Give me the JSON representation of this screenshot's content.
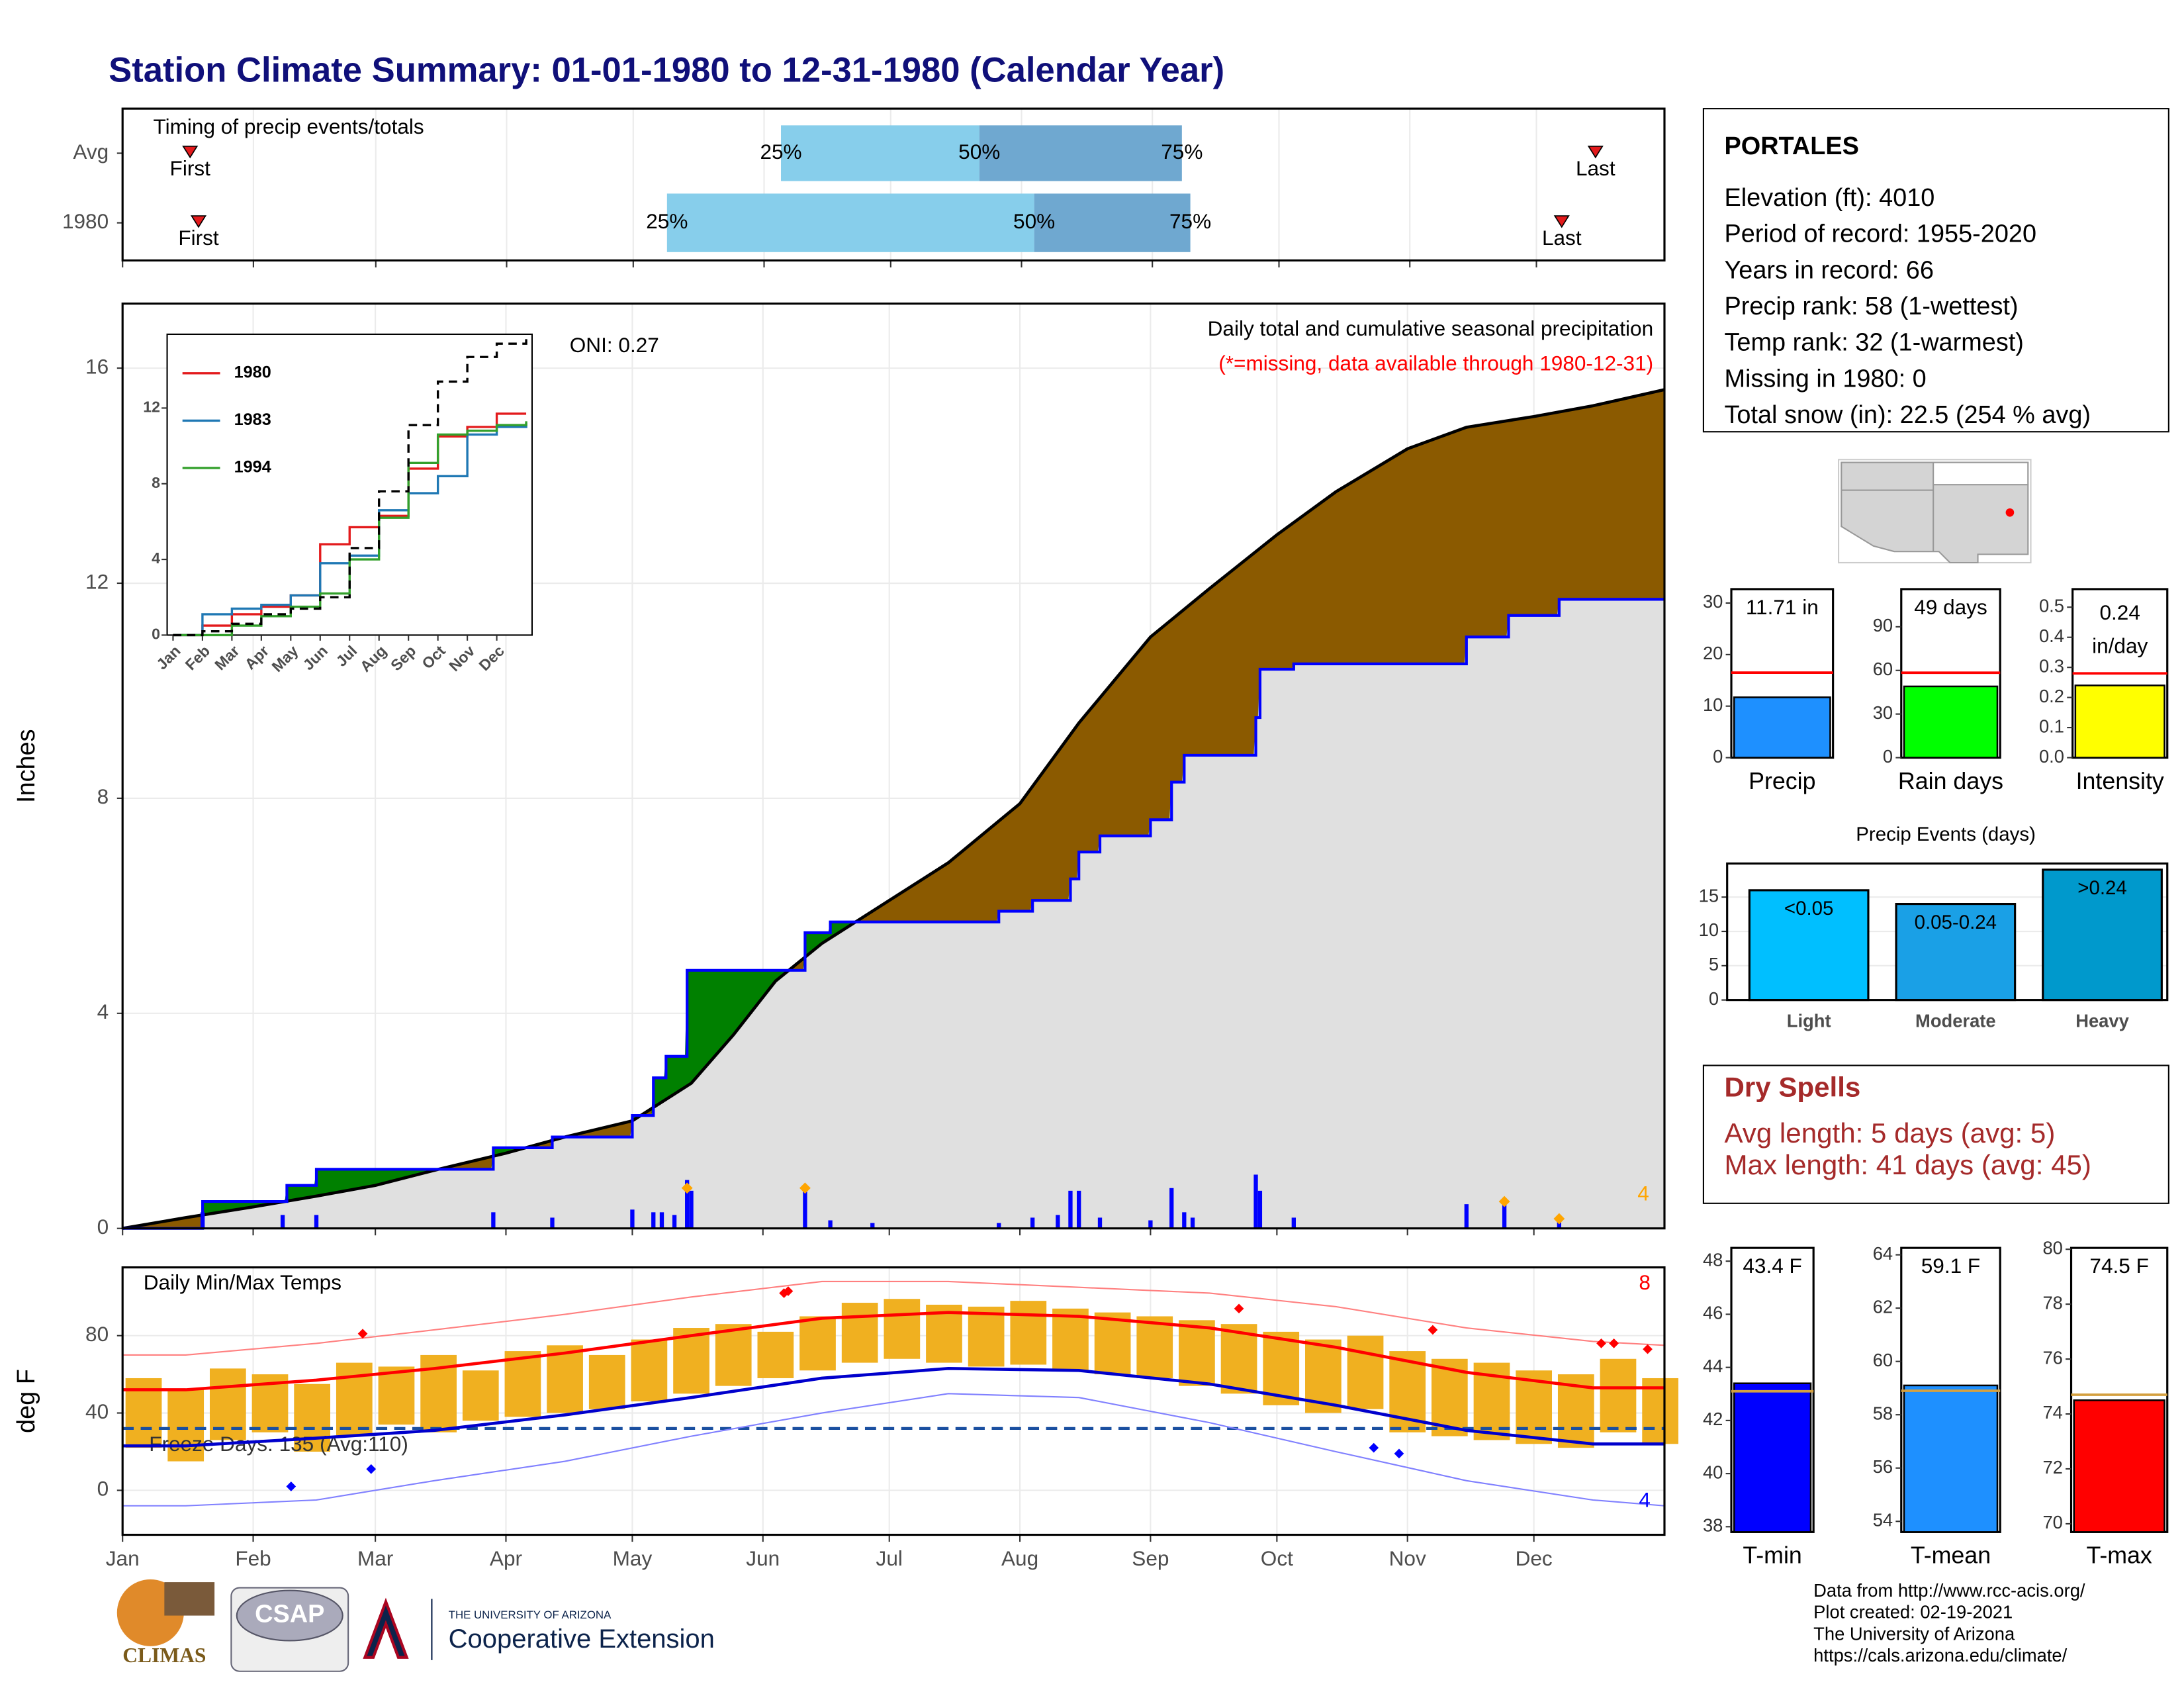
{
  "title": "Station Climate Summary: 01-01-1980 to 12-31-1980 (Calendar Year)",
  "chart_data": [
    {
      "type": "timing",
      "title": "Timing of precip events/totals",
      "categories": [
        "Avg",
        "1980"
      ],
      "xlim": [
        0,
        366
      ],
      "rows": [
        {
          "first": 16,
          "p25": 156,
          "p50": 203,
          "p75": 251,
          "last": 349
        },
        {
          "first": 18,
          "p25": 129,
          "p50": 216,
          "p75": 253,
          "last": 341
        }
      ],
      "labels": {
        "first": "First",
        "p25": "25%",
        "p50": "50%",
        "p75": "75%",
        "last": "Last"
      },
      "colors": [
        "#87ceeb",
        "#6fa8d0"
      ],
      "marker_color": "#e31a1c"
    },
    {
      "type": "cumulative",
      "title": "Daily total and cumulative seasonal precipitation",
      "subtitle": "(*=missing, data available through 1980-12-31)",
      "annotation": "ONI: 0.27",
      "ylabel": "Inches",
      "xlim": [
        0,
        366
      ],
      "ylim": [
        0,
        17.2
      ],
      "yticks": [
        0,
        4,
        8,
        12,
        16
      ],
      "grid": true,
      "series": [
        {
          "color": "#000000",
          "x": [
            0,
            15,
            31,
            46,
            60,
            75,
            91,
            105,
            121,
            135,
            145,
            155,
            166,
            182,
            196,
            213,
            227,
            244,
            258,
            274,
            288,
            305,
            319,
            335,
            349,
            366
          ],
          "values": [
            0,
            0.2,
            0.4,
            0.6,
            0.8,
            1.1,
            1.4,
            1.7,
            2.0,
            2.7,
            3.6,
            4.6,
            5.3,
            6.1,
            6.8,
            7.9,
            9.4,
            11.0,
            11.9,
            12.9,
            13.7,
            14.5,
            14.9,
            15.1,
            15.3,
            15.6
          ]
        },
        {
          "color": "#0000ff",
          "step": true,
          "x": [
            0,
            19,
            39,
            46,
            88,
            102,
            121,
            126,
            129,
            134,
            162,
            168,
            208,
            216,
            225,
            227,
            232,
            244,
            249,
            252,
            269,
            270,
            278,
            319,
            329,
            341,
            366
          ],
          "values": [
            0,
            0.5,
            0.8,
            1.1,
            1.5,
            1.7,
            2.1,
            2.8,
            3.2,
            4.8,
            5.5,
            5.7,
            5.9,
            6.1,
            6.5,
            7.0,
            7.3,
            7.6,
            8.3,
            8.8,
            9.5,
            10.4,
            10.5,
            11.0,
            11.4,
            11.7,
            11.7
          ]
        }
      ],
      "fill_colors": {
        "above": "#8b5a00",
        "below": "#008000",
        "base": "#e0e0e0"
      },
      "daily": {
        "color": "#0000ff",
        "x": [
          19,
          38,
          46,
          88,
          102,
          121,
          126,
          128,
          131,
          134,
          135,
          162,
          168,
          178,
          208,
          216,
          222,
          225,
          227,
          232,
          244,
          249,
          252,
          254,
          269,
          270,
          278,
          319,
          328,
          341
        ],
        "values": [
          0.3,
          0.25,
          0.25,
          0.3,
          0.2,
          0.35,
          0.3,
          0.3,
          0.25,
          0.9,
          0.7,
          0.8,
          0.15,
          0.1,
          0.1,
          0.2,
          0.25,
          0.7,
          0.7,
          0.2,
          0.15,
          0.75,
          0.3,
          0.2,
          1.0,
          0.7,
          0.2,
          0.45,
          0.45,
          0.15
        ]
      },
      "extremes": {
        "color": "#ffa500",
        "count": 4,
        "x": [
          134,
          162,
          328,
          341
        ],
        "values": [
          0.75,
          0.75,
          0.5,
          0.18
        ]
      }
    },
    {
      "type": "line",
      "xlim": [
        -0.2,
        12.2
      ],
      "ylim": [
        0,
        15.9
      ],
      "yticks": [
        0,
        4,
        8,
        12
      ],
      "x": [
        0,
        1,
        2,
        3,
        4,
        5,
        6,
        7,
        8,
        9,
        10,
        11,
        12
      ],
      "xticks": [
        {
          "value": 0,
          "label": "Jan"
        },
        {
          "value": 1,
          "label": "Feb"
        },
        {
          "value": 2,
          "label": "Mar"
        },
        {
          "value": 3,
          "label": "Apr"
        },
        {
          "value": 4,
          "label": "May"
        },
        {
          "value": 5,
          "label": "Jun"
        },
        {
          "value": 6,
          "label": "Jul"
        },
        {
          "value": 7,
          "label": "Aug"
        },
        {
          "value": 8,
          "label": "Sep"
        },
        {
          "value": 9,
          "label": "Oct"
        },
        {
          "value": 10,
          "label": "Nov"
        },
        {
          "value": 11,
          "label": "Dec"
        }
      ],
      "series": [
        {
          "name": "1980",
          "color": "#e31a1c",
          "values": [
            0,
            0.5,
            1.1,
            1.5,
            2.1,
            4.8,
            5.7,
            6.3,
            8.8,
            10.5,
            11.0,
            11.7,
            11.7
          ]
        },
        {
          "name": "1983",
          "color": "#1f78b4",
          "values": [
            0,
            1.1,
            1.4,
            1.6,
            2.1,
            3.8,
            4.2,
            6.6,
            7.5,
            8.4,
            10.6,
            11.0,
            11.2
          ]
        },
        {
          "name": "1994",
          "color": "#33a02c",
          "values": [
            0,
            0,
            0.5,
            1.0,
            1.5,
            2.2,
            4.0,
            6.2,
            9.1,
            10.6,
            10.8,
            11.1,
            11.3
          ]
        },
        {
          "color": "#000000",
          "dash": true,
          "values": [
            0,
            0.2,
            0.6,
            1.1,
            1.4,
            2.0,
            4.6,
            7.6,
            11.1,
            13.4,
            14.7,
            15.4,
            15.8
          ]
        }
      ]
    },
    {
      "type": "temperature",
      "title": "Daily Min/Max Temps",
      "ylabel": "deg F",
      "xlim": [
        0,
        366
      ],
      "ylim": [
        -23,
        115.3
      ],
      "yticks": [
        0,
        40,
        80
      ],
      "grid": true,
      "xticks": [
        {
          "value": 0,
          "label": "Jan"
        },
        {
          "value": 31,
          "label": "Feb"
        },
        {
          "value": 60,
          "label": "Mar"
        },
        {
          "value": 91,
          "label": "Apr"
        },
        {
          "value": 121,
          "label": "May"
        },
        {
          "value": 152,
          "label": "Jun"
        },
        {
          "value": 182,
          "label": "Jul"
        },
        {
          "value": 213,
          "label": "Aug"
        },
        {
          "value": 244,
          "label": "Sep"
        },
        {
          "value": 274,
          "label": "Oct"
        },
        {
          "value": 305,
          "label": "Nov"
        },
        {
          "value": 335,
          "label": "Dec"
        }
      ],
      "daily": {
        "color": "#f0b020",
        "x": [
          5,
          15,
          25,
          35,
          45,
          55,
          65,
          75,
          85,
          95,
          105,
          115,
          125,
          135,
          145,
          155,
          165,
          175,
          185,
          195,
          205,
          215,
          225,
          235,
          245,
          255,
          265,
          275,
          285,
          295,
          305,
          315,
          325,
          335,
          345,
          355,
          365
        ],
        "low": [
          22,
          15,
          26,
          30,
          20,
          28,
          34,
          30,
          36,
          38,
          40,
          42,
          46,
          50,
          54,
          58,
          62,
          66,
          68,
          66,
          64,
          65,
          62,
          60,
          58,
          54,
          50,
          44,
          40,
          42,
          30,
          28,
          26,
          24,
          22,
          30,
          24
        ],
        "high": [
          58,
          52,
          63,
          60,
          55,
          66,
          64,
          70,
          62,
          72,
          75,
          70,
          78,
          84,
          86,
          82,
          90,
          97,
          99,
          96,
          95,
          98,
          94,
          92,
          90,
          88,
          86,
          82,
          78,
          80,
          72,
          68,
          66,
          62,
          60,
          68,
          58
        ]
      },
      "normal_high": {
        "color": "#ff0000",
        "x": [
          0,
          15,
          46,
          74,
          105,
          135,
          166,
          196,
          227,
          258,
          288,
          319,
          349,
          366
        ],
        "values": [
          52,
          52,
          57,
          63,
          71,
          80,
          89,
          92,
          90,
          84,
          74,
          61,
          53,
          53
        ]
      },
      "normal_low": {
        "color": "#0000cc",
        "x": [
          0,
          15,
          46,
          74,
          105,
          135,
          166,
          196,
          227,
          258,
          288,
          319,
          349,
          366
        ],
        "values": [
          23,
          23,
          27,
          31,
          39,
          48,
          58,
          63,
          62,
          55,
          44,
          31,
          24,
          24
        ]
      },
      "record_high": {
        "color": "#ff8080",
        "x": [
          0,
          15,
          46,
          74,
          105,
          135,
          166,
          196,
          227,
          258,
          288,
          319,
          349,
          366
        ],
        "values": [
          70,
          70,
          76,
          83,
          91,
          100,
          108,
          108,
          105,
          102,
          95,
          84,
          77,
          75
        ]
      },
      "record_low": {
        "color": "#8080ff",
        "x": [
          0,
          15,
          46,
          74,
          105,
          135,
          166,
          196,
          227,
          258,
          288,
          319,
          349,
          366
        ],
        "values": [
          -8,
          -8,
          -5,
          5,
          15,
          28,
          40,
          50,
          48,
          35,
          20,
          5,
          -5,
          -8
        ]
      },
      "new_highs": {
        "color": "#ff0000",
        "count": 8,
        "x": [
          57,
          157,
          158,
          265,
          311,
          351,
          354,
          362
        ],
        "values": [
          81,
          102,
          103,
          94,
          83,
          76,
          76,
          73
        ]
      },
      "new_lows": {
        "color": "#0000ff",
        "count": 4,
        "x": [
          40,
          59,
          297,
          303
        ],
        "values": [
          2,
          11,
          22,
          19
        ]
      },
      "freeze": {
        "value": 32,
        "color": "#1a4fa0",
        "label": "Freeze Days: 135 (Avg:110)"
      }
    },
    {
      "type": "gauge",
      "categories": [
        "Precip"
      ],
      "values": [
        11.71
      ],
      "value_labels": [
        "11.71 in"
      ],
      "average": 16.5,
      "average_color": "#ff0000",
      "color": "#1e90ff",
      "ylim": [
        0,
        32.7
      ],
      "yticks": [
        0,
        10,
        20,
        30
      ]
    },
    {
      "type": "gauge",
      "categories": [
        "Rain days"
      ],
      "values": [
        49
      ],
      "value_labels": [
        "49 days"
      ],
      "average": 58.4,
      "average_color": "#ff0000",
      "color": "#00ff00",
      "ylim": [
        0,
        115.9
      ],
      "yticks": [
        0,
        30,
        60,
        90
      ]
    },
    {
      "type": "gauge",
      "categories": [
        "Intensity"
      ],
      "values": [
        0.24
      ],
      "unit": "in/day",
      "average": 0.28,
      "average_color": "#ff0000",
      "color": "#ffff00",
      "ylim": [
        0,
        0.56
      ],
      "yticks": [
        {
          "value": 0,
          "label": "0.0"
        },
        0.1,
        0.2,
        0.3,
        0.4,
        0.5
      ]
    },
    {
      "type": "bar",
      "title": "Precip Events (days)",
      "categories": [
        "Light",
        "Moderate",
        "Heavy"
      ],
      "values": [
        16,
        14,
        19
      ],
      "bar_labels": [
        "<0.05",
        "0.05-0.24",
        ">0.24"
      ],
      "colors": [
        "#00bfff",
        "#1aa0e6",
        "#0099cc"
      ],
      "ylim": [
        0,
        19.9
      ],
      "yticks": [
        0,
        5,
        10,
        15
      ],
      "grid": true
    },
    {
      "type": "gauge",
      "categories": [
        "T-min"
      ],
      "values": [
        43.4
      ],
      "value_labels": [
        "43.4 F"
      ],
      "average": 43.1,
      "average_color": "#d4a040",
      "color": "#0000ff",
      "ylim": [
        37.8,
        48.5
      ],
      "yticks": [
        38,
        40,
        42,
        44,
        46,
        48
      ]
    },
    {
      "type": "gauge",
      "categories": [
        "T-mean"
      ],
      "values": [
        59.1
      ],
      "value_labels": [
        "59.1 F"
      ],
      "average": 58.9,
      "average_color": "#d4a040",
      "color": "#1e90ff",
      "ylim": [
        53.6,
        64.26
      ],
      "yticks": [
        54,
        56,
        58,
        60,
        62,
        64
      ]
    },
    {
      "type": "gauge",
      "categories": [
        "T-max"
      ],
      "values": [
        74.5
      ],
      "value_labels": [
        "74.5 F"
      ],
      "average": 74.7,
      "average_color": "#d4a040",
      "color": "#ff0000",
      "ylim": [
        69.7,
        80.05
      ],
      "yticks": [
        70,
        72,
        74,
        76,
        78,
        80
      ]
    }
  ],
  "station": {
    "name": "PORTALES",
    "lines": [
      "Elevation (ft): 4010",
      "Period of record: 1955-2020",
      "Years in record: 66",
      "Precip rank: 58 (1-wettest)",
      "Temp rank: 32 (1-warmest)",
      "Missing in 1980: 0",
      "Total snow (in): 22.5 (254 % avg)"
    ]
  },
  "dry_spells": {
    "title": "Dry Spells",
    "lines": [
      "Avg length: 5 days (avg: 5)",
      "Max length: 41 days (avg: 45)"
    ]
  },
  "footer": {
    "lines": [
      "Data from http://www.rcc-acis.org/",
      "Plot created: 02-19-2021",
      "The University of Arizona",
      "https://cals.arizona.edu/climate/"
    ],
    "logos": [
      "CLIMAS",
      "CSAP",
      "THE UNIVERSITY OF ARIZONA",
      "Cooperative Extension"
    ]
  }
}
